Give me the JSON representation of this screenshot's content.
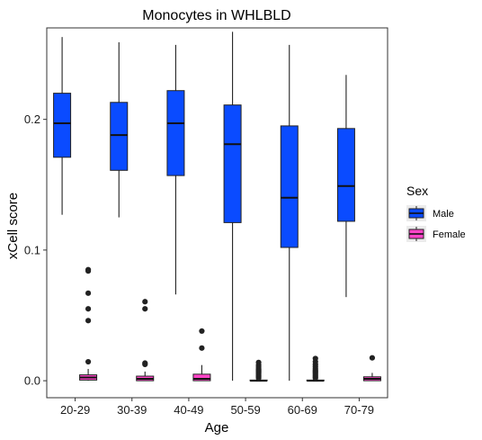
{
  "chart_data": {
    "type": "boxplot",
    "title": "Monocytes in WHLBLD",
    "xlabel": "Age",
    "ylabel": "xCell score",
    "ylim": [
      -0.013,
      0.27
    ],
    "yticks": [
      0.0,
      0.1,
      0.2
    ],
    "ytick_labels": [
      "0.0",
      "0.1",
      "0.2"
    ],
    "categories": [
      "20-29",
      "30-39",
      "40-49",
      "50-59",
      "60-69",
      "70-79"
    ],
    "legend": {
      "title": "Sex",
      "placement": "right"
    },
    "series": [
      {
        "name": "Male",
        "color": "#0a4bff",
        "boxes": [
          {
            "min": 0.127,
            "q1": 0.171,
            "median": 0.197,
            "q3": 0.22,
            "max": 0.263
          },
          {
            "min": 0.125,
            "q1": 0.161,
            "median": 0.188,
            "q3": 0.213,
            "max": 0.259
          },
          {
            "min": 0.066,
            "q1": 0.157,
            "median": 0.197,
            "q3": 0.222,
            "max": 0.257
          },
          {
            "min": 0.0,
            "q1": 0.121,
            "median": 0.181,
            "q3": 0.211,
            "max": 0.267
          },
          {
            "min": 0.0,
            "q1": 0.102,
            "median": 0.14,
            "q3": 0.195,
            "max": 0.257
          },
          {
            "min": 0.064,
            "q1": 0.122,
            "median": 0.149,
            "q3": 0.193,
            "max": 0.234
          }
        ],
        "outliers": [
          [],
          [],
          [],
          [],
          [],
          []
        ]
      },
      {
        "name": "Female",
        "color": "#ff44c8",
        "boxes": [
          {
            "min": 0.0,
            "q1": 0.0005,
            "median": 0.0025,
            "q3": 0.0045,
            "max": 0.009
          },
          {
            "min": 0.0,
            "q1": 0.0,
            "median": 0.0015,
            "q3": 0.0035,
            "max": 0.007
          },
          {
            "min": 0.0,
            "q1": 0.0,
            "median": 0.0015,
            "q3": 0.005,
            "max": 0.012
          },
          {
            "min": 0.0,
            "q1": 0.0,
            "median": 0.0,
            "q3": 0.0005,
            "max": 0.0012
          },
          {
            "min": 0.0,
            "q1": 0.0,
            "median": 0.0,
            "q3": 0.0005,
            "max": 0.0012
          },
          {
            "min": 0.0,
            "q1": 0.0,
            "median": 0.0015,
            "q3": 0.003,
            "max": 0.006
          }
        ],
        "outliers": [
          [
            0.0145,
            0.046,
            0.055,
            0.067,
            0.084,
            0.085
          ],
          [
            0.0125,
            0.0135,
            0.055,
            0.0605
          ],
          [
            0.025,
            0.038
          ],
          [
            0.002,
            0.003,
            0.004,
            0.005,
            0.006,
            0.007,
            0.008,
            0.009,
            0.0105,
            0.012,
            0.014
          ],
          [
            0.002,
            0.003,
            0.004,
            0.005,
            0.006,
            0.007,
            0.008,
            0.0095,
            0.011,
            0.0125,
            0.0145,
            0.017
          ],
          [
            0.0175
          ]
        ]
      }
    ]
  }
}
